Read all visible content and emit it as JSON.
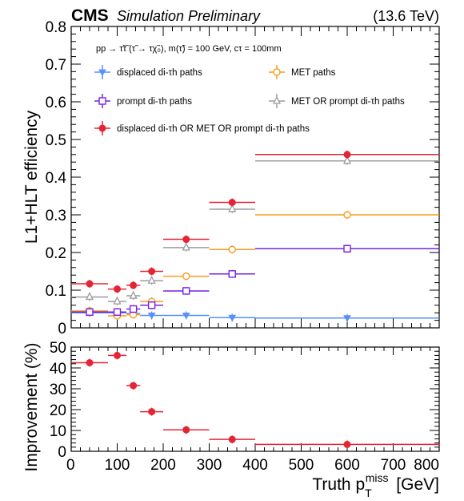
{
  "header": {
    "experiment": "CMS",
    "status": "Simulation Preliminary",
    "energy": "(13.6 TeV)"
  },
  "annotation": "pp → τ̃τ̃ (τ̃ → τχ̃₀), m(τ̃) = 100 GeV, cτ = 100mm",
  "chart_data": [
    {
      "type": "scatter",
      "panel": "efficiency",
      "ylabel": "L1+HLT efficiency",
      "xlim": [
        0,
        800
      ],
      "ylim": [
        0,
        0.8
      ],
      "yticks": [
        "0",
        "0.1",
        "0.2",
        "0.3",
        "0.4",
        "0.5",
        "0.6",
        "0.7",
        "0.8"
      ],
      "yticks_values": [
        0,
        0.1,
        0.2,
        0.3,
        0.4,
        0.5,
        0.6,
        0.7,
        0.8
      ],
      "legend_placement": "top",
      "series": [
        {
          "name": "displaced di-τh paths",
          "color": "#5790fc",
          "marker": "triangle-down-filled",
          "x": [
            40,
            100,
            135,
            175,
            250,
            350,
            600
          ],
          "xerr_low": [
            40,
            20,
            15,
            25,
            50,
            50,
            200
          ],
          "xerr_high": [
            40,
            20,
            15,
            25,
            50,
            50,
            200
          ],
          "y": [
            0.04,
            0.04,
            0.038,
            0.033,
            0.033,
            0.027,
            0.026
          ]
        },
        {
          "name": "MET paths",
          "color": "#f89c20",
          "marker": "circle-open",
          "x": [
            40,
            100,
            135,
            175,
            250,
            350,
            600
          ],
          "xerr_low": [
            40,
            20,
            15,
            25,
            50,
            50,
            200
          ],
          "xerr_high": [
            40,
            20,
            15,
            25,
            50,
            50,
            200
          ],
          "y": [
            0.045,
            0.032,
            0.035,
            0.07,
            0.137,
            0.208,
            0.3
          ]
        },
        {
          "name": "prompt di-τh paths",
          "color": "#7a21dd",
          "marker": "square-open",
          "x": [
            40,
            100,
            135,
            175,
            250,
            350,
            600
          ],
          "xerr_low": [
            40,
            20,
            15,
            25,
            50,
            50,
            200
          ],
          "xerr_high": [
            40,
            20,
            15,
            25,
            50,
            50,
            200
          ],
          "y": [
            0.042,
            0.042,
            0.05,
            0.06,
            0.098,
            0.143,
            0.21
          ]
        },
        {
          "name": "MET OR prompt di-τh paths",
          "color": "#9c9ca1",
          "marker": "triangle-up-open",
          "x": [
            40,
            100,
            135,
            175,
            250,
            350,
            600
          ],
          "xerr_low": [
            40,
            20,
            15,
            25,
            50,
            50,
            200
          ],
          "xerr_high": [
            40,
            20,
            15,
            25,
            50,
            50,
            200
          ],
          "y": [
            0.082,
            0.07,
            0.085,
            0.125,
            0.213,
            0.315,
            0.443
          ]
        },
        {
          "name": "displaced di-τh OR MET OR prompt di-τh paths",
          "color": "#e42536",
          "marker": "circle-filled",
          "x": [
            40,
            100,
            135,
            175,
            250,
            350,
            600
          ],
          "xerr_low": [
            40,
            20,
            15,
            25,
            50,
            50,
            200
          ],
          "xerr_high": [
            40,
            20,
            15,
            25,
            50,
            50,
            200
          ],
          "y": [
            0.117,
            0.103,
            0.113,
            0.15,
            0.235,
            0.333,
            0.46
          ]
        }
      ]
    },
    {
      "type": "scatter",
      "panel": "improvement",
      "ylabel": "Improvement (%)",
      "xlabel": "Truth p_T^miss [GeV]",
      "xlim": [
        0,
        800
      ],
      "ylim": [
        0,
        50
      ],
      "xticks": [
        "0",
        "100",
        "200",
        "300",
        "400",
        "500",
        "600",
        "700",
        "800"
      ],
      "xticks_values": [
        0,
        100,
        200,
        300,
        400,
        500,
        600,
        700,
        800
      ],
      "yticks": [
        "0",
        "10",
        "20",
        "30",
        "40",
        "50"
      ],
      "yticks_values": [
        0,
        10,
        20,
        30,
        40,
        50
      ],
      "series": [
        {
          "color": "#e42536",
          "marker": "circle-filled",
          "x": [
            40,
            100,
            135,
            175,
            250,
            350,
            600
          ],
          "xerr_low": [
            40,
            20,
            15,
            25,
            50,
            50,
            200
          ],
          "xerr_high": [
            40,
            20,
            15,
            25,
            50,
            50,
            200
          ],
          "y": [
            42.5,
            46,
            31.5,
            19,
            10.3,
            5.7,
            3.3
          ]
        }
      ]
    }
  ]
}
